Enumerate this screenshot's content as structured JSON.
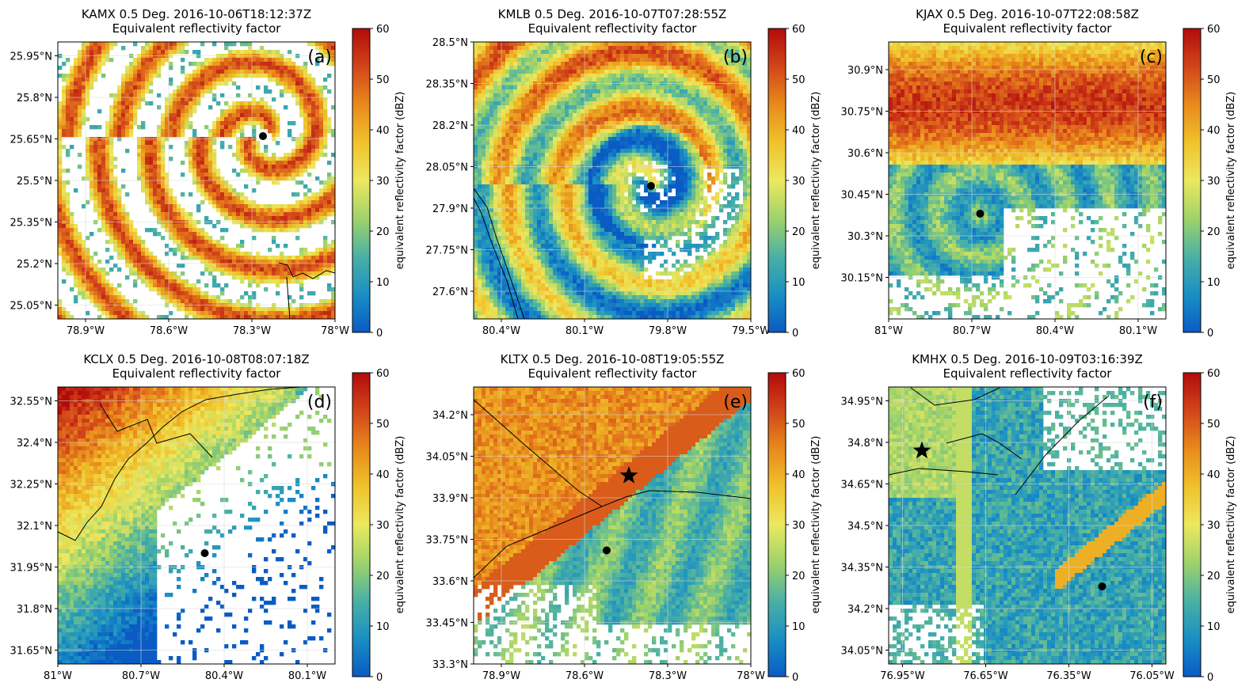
{
  "colormap_stops": [
    "#0a5bc4",
    "#1a8fc4",
    "#4bb1a4",
    "#9fd36a",
    "#ece85f",
    "#f0c22b",
    "#e88a1c",
    "#d2451a",
    "#b20b0b"
  ],
  "colors": {
    "white": "#ffffff",
    "grid": "#d9d9d9",
    "outline": "#000000"
  },
  "chart_data": [
    {
      "type": "heatmap",
      "title": "KAMX 0.5 Deg. 2016-10-06T18:12:37Z",
      "subtitle": "Equivalent reflectivity factor",
      "panel_label": "(a)",
      "colorbar_label": "equivalent reflectivity factor (dBZ)",
      "colorbar_range": [
        0,
        60
      ],
      "colorbar_ticks": [
        "0",
        "10",
        "20",
        "30",
        "40",
        "50",
        "60"
      ],
      "xlim": [
        -79.0,
        -78.0
      ],
      "ylim": [
        25.0,
        26.0
      ],
      "x_ticks": [
        {
          "v": -78.9,
          "label": "78.9°W"
        },
        {
          "v": -78.6,
          "label": "78.6°W"
        },
        {
          "v": -78.3,
          "label": "78.3°W"
        },
        {
          "v": -78.0,
          "label": "78°W"
        }
      ],
      "y_ticks": [
        {
          "v": 25.05,
          "label": "25.05°N"
        },
        {
          "v": 25.2,
          "label": "25.2°N"
        },
        {
          "v": 25.35,
          "label": "25.35°N"
        },
        {
          "v": 25.5,
          "label": "25.5°N"
        },
        {
          "v": 25.65,
          "label": "25.65°N"
        },
        {
          "v": 25.8,
          "label": "25.8°N"
        },
        {
          "v": 25.95,
          "label": "25.95°N"
        }
      ],
      "center_marker": {
        "lon": -78.26,
        "lat": 25.66,
        "symbol": "dot"
      }
    },
    {
      "type": "heatmap",
      "title": "KMLB 0.5 Deg. 2016-10-07T07:28:55Z",
      "subtitle": "Equivalent reflectivity factor",
      "panel_label": "(b)",
      "colorbar_label": "equivalent reflectivity factor (dBZ)",
      "colorbar_range": [
        0,
        60
      ],
      "colorbar_ticks": [
        "0",
        "10",
        "20",
        "30",
        "40",
        "50",
        "60"
      ],
      "xlim": [
        -80.5,
        -79.5
      ],
      "ylim": [
        27.5,
        28.5
      ],
      "x_ticks": [
        {
          "v": -80.4,
          "label": "80.4°W"
        },
        {
          "v": -80.1,
          "label": "80.1°W"
        },
        {
          "v": -79.8,
          "label": "79.8°W"
        },
        {
          "v": -79.5,
          "label": "79.5°W"
        }
      ],
      "y_ticks": [
        {
          "v": 27.6,
          "label": "27.6°N"
        },
        {
          "v": 27.75,
          "label": "27.75°N"
        },
        {
          "v": 27.9,
          "label": "27.9°N"
        },
        {
          "v": 28.05,
          "label": "28.05°N"
        },
        {
          "v": 28.2,
          "label": "28.2°N"
        },
        {
          "v": 28.35,
          "label": "28.35°N"
        },
        {
          "v": 28.5,
          "label": "28.5°N"
        }
      ],
      "center_marker": {
        "lon": -79.86,
        "lat": 27.98,
        "symbol": "dot"
      }
    },
    {
      "type": "heatmap",
      "title": "KJAX 0.5 Deg. 2016-10-07T22:08:58Z",
      "subtitle": "Equivalent reflectivity factor",
      "panel_label": "(c)",
      "colorbar_label": "equivalent reflectivity factor (dBZ)",
      "colorbar_range": [
        0,
        60
      ],
      "colorbar_ticks": [
        "0",
        "10",
        "20",
        "30",
        "40",
        "50",
        "60"
      ],
      "xlim": [
        -81.0,
        -80.0
      ],
      "ylim": [
        30.0,
        31.0
      ],
      "x_ticks": [
        {
          "v": -81.0,
          "label": "81°W"
        },
        {
          "v": -80.7,
          "label": "80.7°W"
        },
        {
          "v": -80.4,
          "label": "80.4°W"
        },
        {
          "v": -80.1,
          "label": "80.1°W"
        }
      ],
      "y_ticks": [
        {
          "v": 30.15,
          "label": "30.15°N"
        },
        {
          "v": 30.3,
          "label": "30.3°N"
        },
        {
          "v": 30.45,
          "label": "30.45°N"
        },
        {
          "v": 30.6,
          "label": "30.6°N"
        },
        {
          "v": 30.75,
          "label": "30.75°N"
        },
        {
          "v": 30.9,
          "label": "30.9°N"
        }
      ],
      "center_marker": {
        "lon": -80.67,
        "lat": 30.38,
        "symbol": "dot"
      }
    },
    {
      "type": "heatmap",
      "title": "KCLX 0.5 Deg. 2016-10-08T08:07:18Z",
      "subtitle": "Equivalent reflectivity factor",
      "panel_label": "(d)",
      "colorbar_label": "equivalent reflectivity factor (dBZ)",
      "colorbar_range": [
        0,
        60
      ],
      "colorbar_ticks": [
        "0",
        "10",
        "20",
        "30",
        "40",
        "50",
        "60"
      ],
      "xlim": [
        -81.0,
        -80.0
      ],
      "ylim": [
        31.6,
        32.6
      ],
      "x_ticks": [
        {
          "v": -81.0,
          "label": "81°W"
        },
        {
          "v": -80.7,
          "label": "80.7°W"
        },
        {
          "v": -80.4,
          "label": "80.4°W"
        },
        {
          "v": -80.1,
          "label": "80.1°W"
        }
      ],
      "y_ticks": [
        {
          "v": 31.65,
          "label": "31.65°N"
        },
        {
          "v": 31.8,
          "label": "31.8°N"
        },
        {
          "v": 31.95,
          "label": "31.95°N"
        },
        {
          "v": 32.1,
          "label": "32.1°N"
        },
        {
          "v": 32.25,
          "label": "32.25°N"
        },
        {
          "v": 32.4,
          "label": "32.4°N"
        },
        {
          "v": 32.55,
          "label": "32.55°N"
        }
      ],
      "center_marker": {
        "lon": -80.47,
        "lat": 32.0,
        "symbol": "dot"
      }
    },
    {
      "type": "heatmap",
      "title": "KLTX 0.5 Deg. 2016-10-08T19:05:55Z",
      "subtitle": "Equivalent reflectivity factor",
      "panel_label": "(e)",
      "colorbar_label": "equivalent reflectivity factor (dBZ)",
      "colorbar_range": [
        0,
        60
      ],
      "colorbar_ticks": [
        "0",
        "10",
        "20",
        "30",
        "40",
        "50",
        "60"
      ],
      "xlim": [
        -79.0,
        -78.0
      ],
      "ylim": [
        33.3,
        34.3
      ],
      "x_ticks": [
        {
          "v": -78.9,
          "label": "78.9°W"
        },
        {
          "v": -78.6,
          "label": "78.6°W"
        },
        {
          "v": -78.3,
          "label": "78.3°W"
        },
        {
          "v": -78.0,
          "label": "78°W"
        }
      ],
      "y_ticks": [
        {
          "v": 33.3,
          "label": "33.3°N"
        },
        {
          "v": 33.45,
          "label": "33.45°N"
        },
        {
          "v": 33.6,
          "label": "33.6°N"
        },
        {
          "v": 33.75,
          "label": "33.75°N"
        },
        {
          "v": 33.9,
          "label": "33.9°N"
        },
        {
          "v": 34.05,
          "label": "34.05°N"
        },
        {
          "v": 34.2,
          "label": "34.2°N"
        }
      ],
      "center_marker": {
        "lon": -78.52,
        "lat": 33.71,
        "symbol": "dot"
      },
      "star_marker": {
        "lon": -78.44,
        "lat": 33.98,
        "symbol": "star"
      }
    },
    {
      "type": "heatmap",
      "title": "KMHX 0.5 Deg. 2016-10-09T03:16:39Z",
      "subtitle": "Equivalent reflectivity factor",
      "panel_label": "(f)",
      "colorbar_label": "equivalent reflectivity factor (dBZ)",
      "colorbar_range": [
        0,
        60
      ],
      "colorbar_ticks": [
        "0",
        "10",
        "20",
        "30",
        "40",
        "50",
        "60"
      ],
      "xlim": [
        -77.0,
        -76.0
      ],
      "ylim": [
        34.0,
        35.0
      ],
      "x_ticks": [
        {
          "v": -76.95,
          "label": "76.95°W"
        },
        {
          "v": -76.65,
          "label": "76.65°W"
        },
        {
          "v": -76.35,
          "label": "76.35°W"
        },
        {
          "v": -76.05,
          "label": "76.05°W"
        }
      ],
      "y_ticks": [
        {
          "v": 34.05,
          "label": "34.05°N"
        },
        {
          "v": 34.2,
          "label": "34.2°N"
        },
        {
          "v": 34.35,
          "label": "34.35°N"
        },
        {
          "v": 34.5,
          "label": "34.5°N"
        },
        {
          "v": 34.65,
          "label": "34.65°N"
        },
        {
          "v": 34.8,
          "label": "34.8°N"
        },
        {
          "v": 34.95,
          "label": "34.95°N"
        }
      ],
      "center_marker": {
        "lon": -76.23,
        "lat": 34.28,
        "symbol": "dot"
      },
      "star_marker": {
        "lon": -76.88,
        "lat": 34.77,
        "symbol": "star"
      }
    }
  ]
}
